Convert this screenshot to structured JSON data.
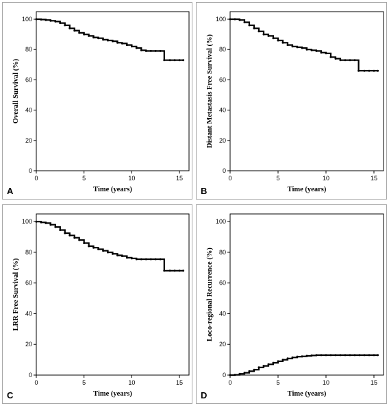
{
  "chart_data": [
    {
      "type": "line",
      "panel_label": "A",
      "xlabel": "Time (years)",
      "ylabel": "Overall Survival (%)",
      "xlim": [
        0,
        16
      ],
      "ylim": [
        0,
        105
      ],
      "xticks": [
        0,
        5,
        10,
        15
      ],
      "yticks": [
        0,
        20,
        40,
        60,
        80,
        100
      ],
      "step": true,
      "grid": false,
      "series": [
        {
          "x": [
            0,
            0.5,
            1,
            1.5,
            2,
            2.5,
            3,
            3.5,
            4,
            4.5,
            5,
            5.5,
            6,
            6.5,
            7,
            7.5,
            8,
            8.5,
            9,
            9.5,
            10,
            10.5,
            11,
            11.5,
            12,
            12.5,
            13,
            13.4,
            14,
            14.5,
            15,
            15.4
          ],
          "y": [
            100,
            99.8,
            99.5,
            99,
            98.5,
            97.5,
            96,
            94,
            92.5,
            91,
            90,
            89,
            88,
            87.5,
            86.5,
            86,
            85.5,
            84.5,
            84,
            83,
            82,
            81,
            79.5,
            79,
            79,
            79,
            79,
            73,
            73,
            73,
            73,
            73
          ]
        }
      ]
    },
    {
      "type": "line",
      "panel_label": "B",
      "xlabel": "Time (years)",
      "ylabel": "Distant Metastasis Free Survival (%)",
      "xlim": [
        0,
        16
      ],
      "ylim": [
        0,
        105
      ],
      "xticks": [
        0,
        5,
        10,
        15
      ],
      "yticks": [
        0,
        20,
        40,
        60,
        80,
        100
      ],
      "step": true,
      "grid": false,
      "series": [
        {
          "x": [
            0,
            0.5,
            1,
            1.5,
            2,
            2.5,
            3,
            3.5,
            4,
            4.5,
            5,
            5.5,
            6,
            6.5,
            7,
            7.5,
            8,
            8.5,
            9,
            9.5,
            10,
            10.5,
            11,
            11.5,
            12,
            12.5,
            13,
            13.4,
            14,
            14.5,
            15,
            15.4
          ],
          "y": [
            100,
            100,
            99.5,
            98,
            96,
            94,
            92,
            90,
            89,
            87.5,
            86,
            84.5,
            83,
            82,
            81.5,
            81,
            80,
            79.5,
            79,
            78,
            77.5,
            75,
            74,
            73,
            73,
            73,
            73,
            66,
            66,
            66,
            66,
            66
          ]
        }
      ]
    },
    {
      "type": "line",
      "panel_label": "C",
      "xlabel": "Time (years)",
      "ylabel": "LRR Free Survival (%)",
      "xlim": [
        0,
        16
      ],
      "ylim": [
        0,
        105
      ],
      "xticks": [
        0,
        5,
        10,
        15
      ],
      "yticks": [
        0,
        20,
        40,
        60,
        80,
        100
      ],
      "step": true,
      "grid": false,
      "series": [
        {
          "x": [
            0,
            0.5,
            1,
            1.5,
            2,
            2.5,
            3,
            3.5,
            4,
            4.5,
            5,
            5.5,
            6,
            6.5,
            7,
            7.5,
            8,
            8.5,
            9,
            9.5,
            10,
            10.5,
            11,
            11.5,
            12,
            12.5,
            13,
            13.4,
            14,
            14.5,
            15,
            15.4
          ],
          "y": [
            100,
            99.5,
            99,
            98,
            96.5,
            94.5,
            92.5,
            91,
            89.5,
            88,
            86,
            84,
            83,
            82,
            81,
            80,
            79,
            78,
            77.5,
            76.5,
            76,
            75.5,
            75.5,
            75.5,
            75.5,
            75.5,
            75.5,
            68,
            68,
            68,
            68,
            68
          ]
        }
      ]
    },
    {
      "type": "line",
      "panel_label": "D",
      "xlabel": "Time (years)",
      "ylabel": "Loco-regional Recurrence (%)",
      "xlim": [
        0,
        16
      ],
      "ylim": [
        0,
        105
      ],
      "xticks": [
        0,
        5,
        10,
        15
      ],
      "yticks": [
        0,
        20,
        40,
        60,
        80,
        100
      ],
      "step": true,
      "grid": false,
      "series": [
        {
          "x": [
            0,
            0.5,
            1,
            1.5,
            2,
            2.5,
            3,
            3.5,
            4,
            4.5,
            5,
            5.5,
            6,
            6.5,
            7,
            7.5,
            8,
            8.5,
            9,
            9.5,
            10,
            10.5,
            11,
            11.5,
            12,
            12.5,
            13,
            13.5,
            14,
            14.5,
            15,
            15.4
          ],
          "y": [
            0,
            0.2,
            0.8,
            1.5,
            2.5,
            3.5,
            5,
            6,
            7,
            8,
            9,
            10,
            10.8,
            11.5,
            12,
            12.2,
            12.5,
            12.8,
            13,
            13,
            13,
            13,
            13,
            13,
            13,
            13,
            13,
            13,
            13,
            13,
            13,
            13
          ]
        }
      ]
    }
  ]
}
